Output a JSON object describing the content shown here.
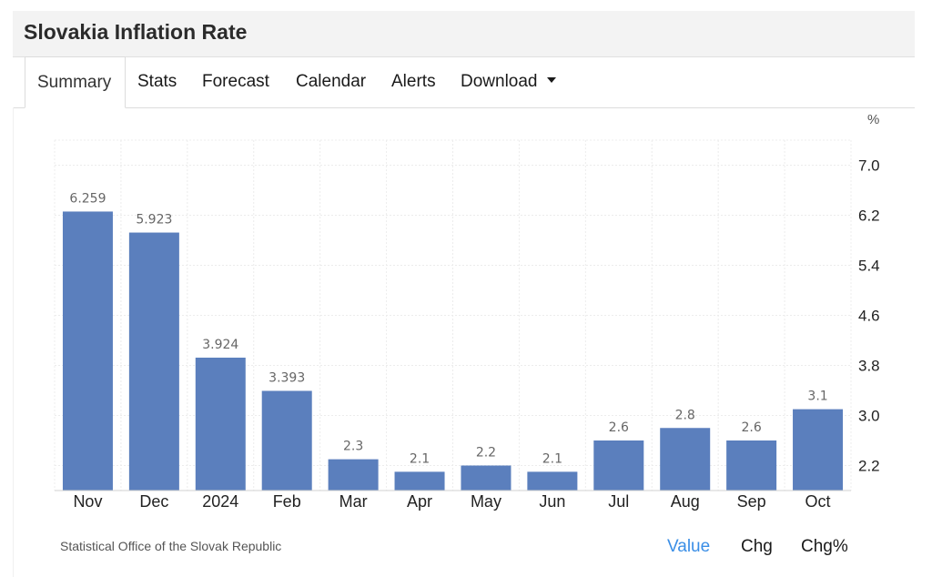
{
  "page": {
    "title": "Slovakia Inflation Rate"
  },
  "tabs": [
    {
      "label": "Summary",
      "active": true
    },
    {
      "label": "Stats"
    },
    {
      "label": "Forecast"
    },
    {
      "label": "Calendar"
    },
    {
      "label": "Alerts"
    },
    {
      "label": "Download",
      "dropdown": true
    }
  ],
  "colors": {
    "bar": "#5b7fbd",
    "accent": "#3a8ee6"
  },
  "chart_data": {
    "type": "bar",
    "title": "",
    "xlabel": "",
    "ylabel": "%",
    "categories": [
      "Nov",
      "Dec",
      "2024",
      "Feb",
      "Mar",
      "Apr",
      "May",
      "Jun",
      "Jul",
      "Aug",
      "Sep",
      "Oct"
    ],
    "values": [
      6.259,
      5.923,
      3.924,
      3.393,
      2.3,
      2.1,
      2.2,
      2.1,
      2.6,
      2.8,
      2.6,
      3.1
    ],
    "value_labels": [
      "6.259",
      "5.923",
      "3.924",
      "3.393",
      "2.3",
      "2.1",
      "2.2",
      "2.1",
      "2.6",
      "2.8",
      "2.6",
      "3.1"
    ],
    "yticks": [
      "7.0",
      "6.2",
      "5.4",
      "4.6",
      "3.8",
      "3.0",
      "2.2"
    ],
    "ylim": [
      1.8,
      7.4
    ],
    "axis_side": "right",
    "grid": true
  },
  "footer": {
    "source": "Statistical Office of the Slovak Republic",
    "toggles": [
      {
        "label": "Value",
        "active": true
      },
      {
        "label": "Chg"
      },
      {
        "label": "Chg%"
      }
    ]
  }
}
